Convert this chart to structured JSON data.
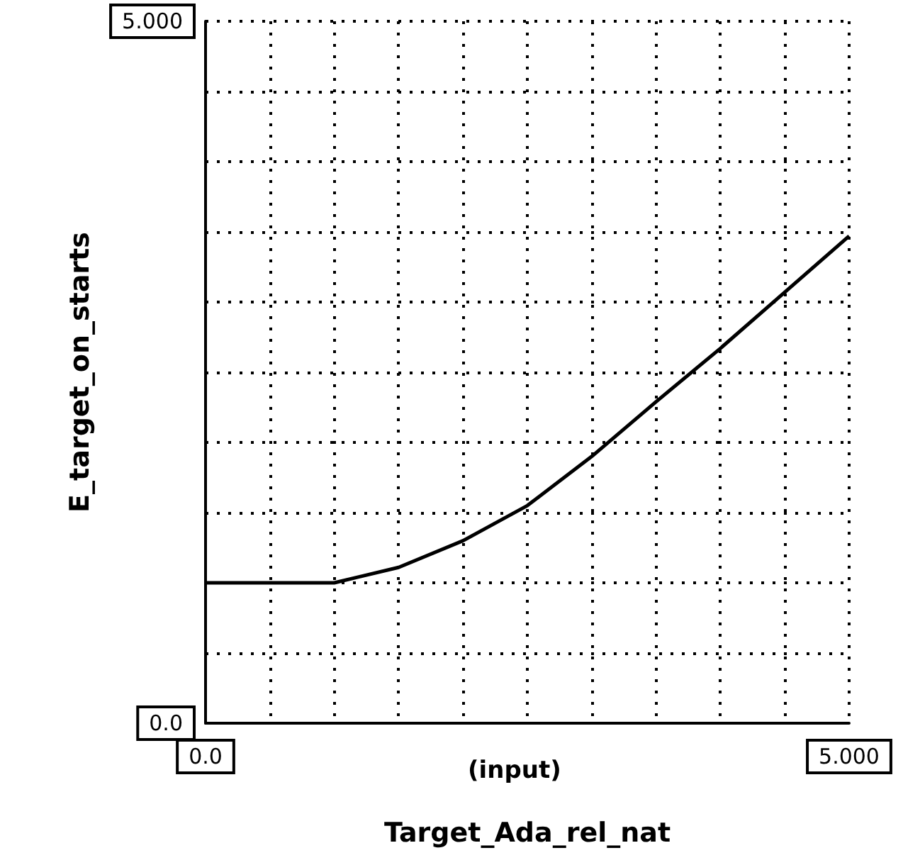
{
  "chart_data": {
    "type": "line",
    "xlabel": "Target_Ada_rel_nat",
    "ylabel": "E_target_on_starts",
    "annotations": [
      "(input)"
    ],
    "x": [
      0,
      0.5,
      1.0,
      1.5,
      2.0,
      2.5,
      3.0,
      3.5,
      4.0,
      4.5,
      5.0
    ],
    "series": [
      {
        "color": "#000000",
        "values": [
          1.0,
          1.0,
          1.0,
          1.11,
          1.3,
          1.55,
          1.9,
          2.29,
          2.67,
          3.07,
          3.47
        ]
      }
    ],
    "xlim": [
      0,
      5
    ],
    "ylim": [
      0,
      5
    ],
    "xticks": [
      {
        "value": 0,
        "label": "0.0"
      },
      {
        "value": 0.5,
        "label": null
      },
      {
        "value": 1,
        "label": null
      },
      {
        "value": 1.5,
        "label": null
      },
      {
        "value": 2,
        "label": null
      },
      {
        "value": 2.5,
        "label": null
      },
      {
        "value": 3,
        "label": null
      },
      {
        "value": 3.5,
        "label": null
      },
      {
        "value": 4,
        "label": null
      },
      {
        "value": 4.5,
        "label": null
      },
      {
        "value": 5,
        "label": "5.000"
      }
    ],
    "yticks": [
      {
        "value": 0,
        "label": "0.0"
      },
      {
        "value": 0.5,
        "label": null
      },
      {
        "value": 1,
        "label": null
      },
      {
        "value": 1.5,
        "label": null
      },
      {
        "value": 2,
        "label": null
      },
      {
        "value": 2.5,
        "label": null
      },
      {
        "value": 3,
        "label": null
      },
      {
        "value": 3.5,
        "label": null
      },
      {
        "value": 4,
        "label": null
      },
      {
        "value": 4.5,
        "label": null
      },
      {
        "value": 5,
        "label": "5.000"
      }
    ],
    "grid": true,
    "marker": "none",
    "line_style": "solid"
  }
}
